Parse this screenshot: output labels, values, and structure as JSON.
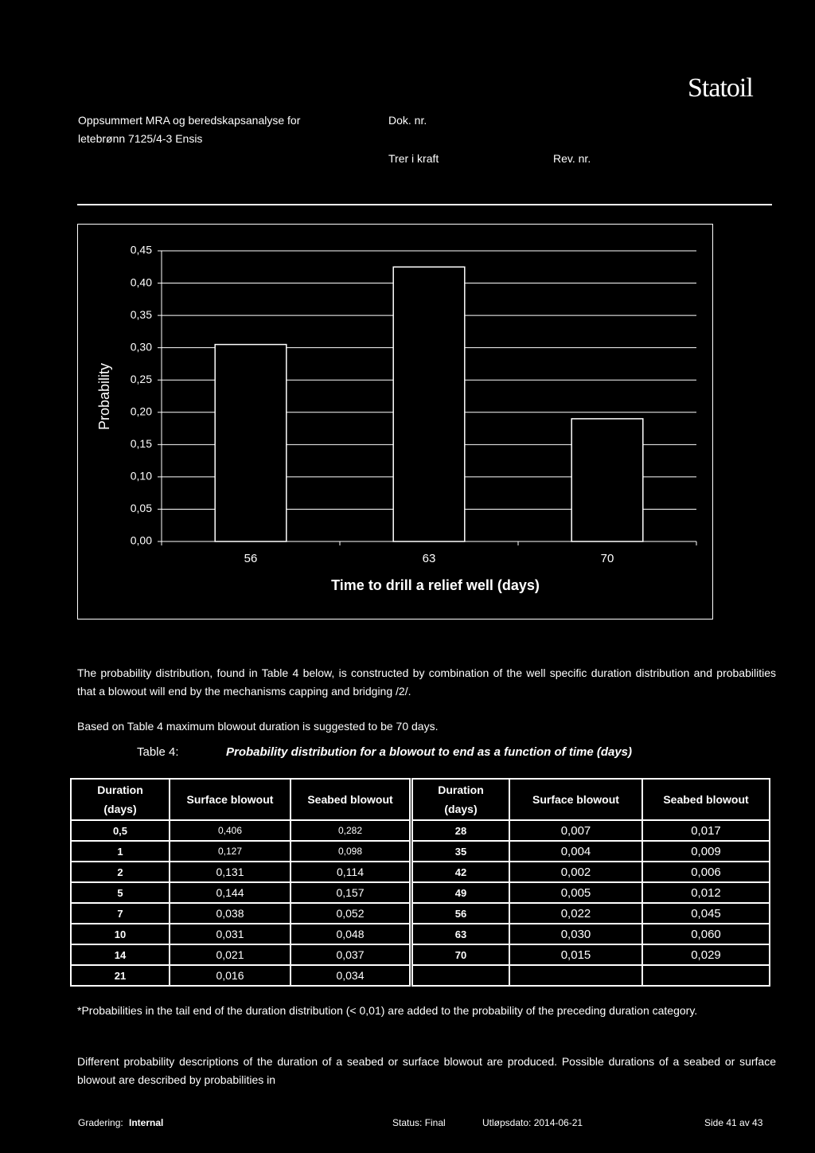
{
  "header": {
    "title_line1": "Oppsummert MRA og beredskapsanalyse for",
    "title_line2": "letebrønn 7125/4-3 Ensis",
    "doc_no": "Dok. nr.",
    "effective": "Trer i kraft",
    "rev_no": "Rev. nr.",
    "logo": "Statoil"
  },
  "chart_data": {
    "type": "bar",
    "categories": [
      "56",
      "63",
      "70"
    ],
    "values": [
      0.305,
      0.425,
      0.19
    ],
    "color": "#000000",
    "edge_color": "#ffffff",
    "y_label": "Probability",
    "x_label": "Time to drill a relief well (days)",
    "ylim": [
      0,
      0.45
    ],
    "yticks": [
      {
        "value": 0,
        "label": "0,00"
      },
      {
        "value": 0.05,
        "label": "0,05"
      },
      {
        "value": 0.1,
        "label": "0,10"
      },
      {
        "value": 0.15,
        "label": "0,15"
      },
      {
        "value": 0.2,
        "label": "0,20"
      },
      {
        "value": 0.25,
        "label": "0,25"
      },
      {
        "value": 0.3,
        "label": "0,30"
      },
      {
        "value": 0.35,
        "label": "0,35"
      },
      {
        "value": 0.4,
        "label": "0,40"
      },
      {
        "value": 0.45,
        "label": "0,45"
      }
    ],
    "grid": true
  },
  "paragraphs": [
    "The probability distribution, found in Table 4 below, is constructed by combination of the well specific duration distribution and probabilities that a blowout will end by the mechanisms capping and bridging /2/.",
    "Based on Table 4 maximum blowout duration is suggested to be 70 days."
  ],
  "table": {
    "label": "Table 4:",
    "caption": "Probability distribution for a blowout to end as a function of time (days)",
    "headers": [
      "Duration (days)",
      "Surface blowout",
      "Seabed blowout"
    ],
    "left_rows": [
      [
        "0,5",
        "0,406",
        "0,282"
      ],
      [
        "1",
        "0,127",
        "0,098"
      ],
      [
        "2",
        "0,131",
        "0,114"
      ],
      [
        "5",
        "0,144",
        "0,157"
      ],
      [
        "7",
        "0,038",
        "0,052"
      ],
      [
        "10",
        "0,031",
        "0,048"
      ],
      [
        "14",
        "0,021",
        "0,037"
      ],
      [
        "21",
        "0,016",
        "0,034"
      ]
    ],
    "right_rows": [
      [
        "28",
        "0,007",
        "0,017"
      ],
      [
        "35",
        "0,004",
        "0,009"
      ],
      [
        "42",
        "0,002",
        "0,006"
      ],
      [
        "49",
        "0,005",
        "0,012"
      ],
      [
        "56",
        "0,022",
        "0,045"
      ],
      [
        "63",
        "0,030",
        "0,060"
      ],
      [
        "70",
        "0,015",
        "0,029"
      ]
    ]
  },
  "footnote": "*Probabilities in the tail end of the duration distribution (< 0,01) are added to the probability of the preceding duration category.",
  "closing": "Different probability descriptions of the duration of a seabed or surface blowout are produced. Possible durations of a seabed or surface blowout are described by probabilities in",
  "footer": {
    "grading_label": "Gradering:",
    "grading_value": "Internal",
    "status": "Status: Final",
    "expiry": "Utløpsdato: 2014-06-21",
    "page": "Side 41 av 43"
  }
}
